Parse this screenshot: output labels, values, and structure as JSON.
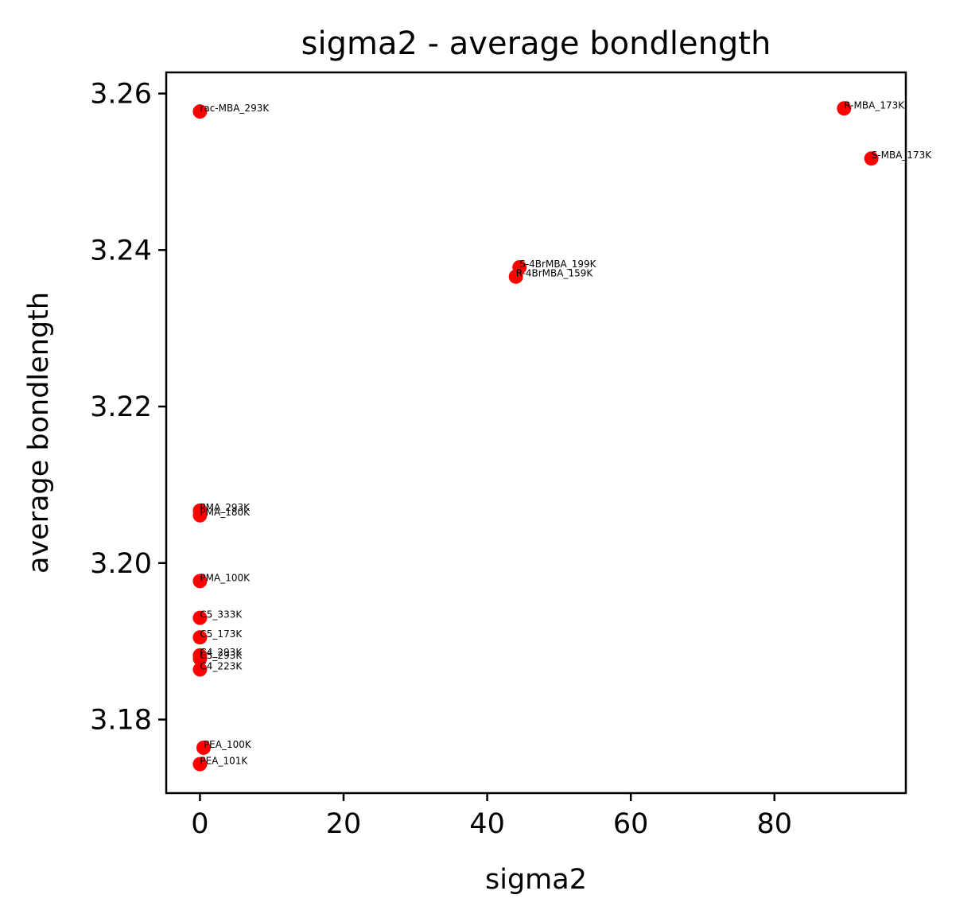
{
  "chart_data": {
    "type": "scatter",
    "title": "sigma2 - average bondlength",
    "xlabel": "sigma2",
    "ylabel": "average bondlength",
    "xlim": [
      -4.7,
      98.3
    ],
    "ylim": [
      3.1706,
      3.2627
    ],
    "xticks": [
      0,
      20,
      40,
      60,
      80
    ],
    "yticks": [
      3.18,
      3.2,
      3.22,
      3.24,
      3.26
    ],
    "xtick_labels": [
      "0",
      "20",
      "40",
      "60",
      "80"
    ],
    "ytick_labels": [
      "3.18",
      "3.20",
      "3.22",
      "3.24",
      "3.26"
    ],
    "grid": false,
    "marker_color": "#ff0000",
    "points": [
      {
        "label": "rac-MBA_293K",
        "x": 0.0,
        "y": 3.2577
      },
      {
        "label": "R-MBA_173K",
        "x": 89.7,
        "y": 3.2581
      },
      {
        "label": "S-MBA_173K",
        "x": 93.5,
        "y": 3.2517
      },
      {
        "label": "S-4BrMBA_199K",
        "x": 44.5,
        "y": 3.2378
      },
      {
        "label": "R-4BrMBA_159K",
        "x": 44.0,
        "y": 3.2366
      },
      {
        "label": "PMA_293K",
        "x": 0.0,
        "y": 3.2067
      },
      {
        "label": "PMA_180K",
        "x": 0.0,
        "y": 3.2061
      },
      {
        "label": "PMA_100K",
        "x": 0.0,
        "y": 3.1977
      },
      {
        "label": "C5_333K",
        "x": 0.0,
        "y": 3.193
      },
      {
        "label": "C5_173K",
        "x": 0.0,
        "y": 3.1905
      },
      {
        "label": "C4_293K",
        "x": 0.0,
        "y": 3.1882
      },
      {
        "label": "C5_293K",
        "x": 0.0,
        "y": 3.1878
      },
      {
        "label": "C4_223K",
        "x": 0.0,
        "y": 3.1864
      },
      {
        "label": "PEA_100K",
        "x": 0.5,
        "y": 3.1764
      },
      {
        "label": "PEA_101K",
        "x": 0.0,
        "y": 3.1743
      }
    ]
  }
}
